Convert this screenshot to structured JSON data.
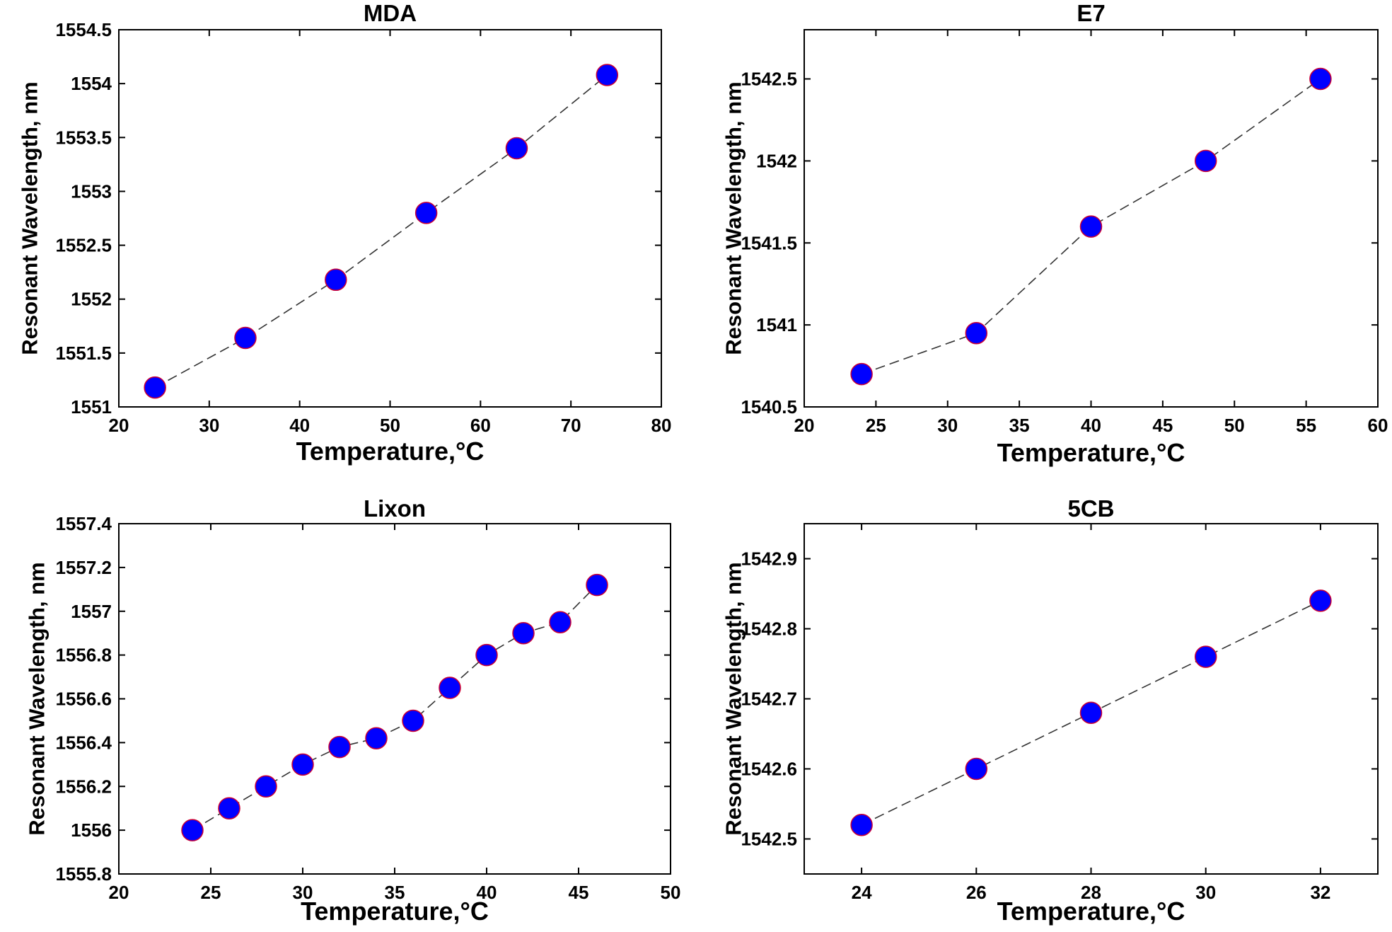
{
  "chart_data": [
    {
      "type": "line",
      "title": "MDA",
      "xlabel": "Temperature,°C",
      "ylabel": "Resonant Wavelength, nm",
      "xlim": [
        20,
        80
      ],
      "ylim": [
        1551,
        1554.5
      ],
      "xticks": [
        20,
        30,
        40,
        50,
        60,
        70,
        80
      ],
      "yticks": [
        1551,
        1551.5,
        1552,
        1552.5,
        1553,
        1553.5,
        1554,
        1554.5
      ],
      "grid": false,
      "series": [
        {
          "name": "MDA",
          "x": [
            24,
            34,
            44,
            54,
            64,
            74
          ],
          "values": [
            1551.18,
            1551.64,
            1552.18,
            1552.8,
            1553.4,
            1554.08
          ]
        }
      ]
    },
    {
      "type": "line",
      "title": "E7",
      "xlabel": "Temperature,°C",
      "ylabel": "Resonant Wavelength, nm",
      "xlim": [
        20,
        60
      ],
      "ylim": [
        1540.5,
        1542.8
      ],
      "xticks": [
        20,
        25,
        30,
        35,
        40,
        45,
        50,
        55,
        60
      ],
      "yticks": [
        1540.5,
        1541,
        1541.5,
        1542,
        1542.5
      ],
      "grid": false,
      "series": [
        {
          "name": "E7",
          "x": [
            24,
            32,
            40,
            48,
            56
          ],
          "values": [
            1540.7,
            1540.95,
            1541.6,
            1542.0,
            1542.5
          ]
        }
      ]
    },
    {
      "type": "line",
      "title": "Lixon",
      "xlabel": "Temperature,°C",
      "ylabel": "Resonant Wavelength, nm",
      "xlim": [
        20,
        50
      ],
      "ylim": [
        1555.8,
        1557.4
      ],
      "xticks": [
        20,
        25,
        30,
        35,
        40,
        45,
        50
      ],
      "yticks": [
        1555.8,
        1556,
        1556.2,
        1556.4,
        1556.6,
        1556.8,
        1557,
        1557.2,
        1557.4
      ],
      "grid": false,
      "series": [
        {
          "name": "Lixon",
          "x": [
            24,
            26,
            28,
            30,
            32,
            34,
            36,
            38,
            40,
            42,
            44,
            46
          ],
          "values": [
            1556.0,
            1556.1,
            1556.2,
            1556.3,
            1556.38,
            1556.42,
            1556.5,
            1556.65,
            1556.8,
            1556.9,
            1556.95,
            1557.12
          ]
        }
      ]
    },
    {
      "type": "line",
      "title": "5CB",
      "xlabel": "Temperature,°C",
      "ylabel": "Resonant Wavelength, nm",
      "xlim": [
        23,
        33
      ],
      "ylim": [
        1542.45,
        1542.95
      ],
      "xticks": [
        24,
        26,
        28,
        30,
        32
      ],
      "yticks": [
        1542.5,
        1542.6,
        1542.7,
        1542.8,
        1542.9
      ],
      "grid": false,
      "series": [
        {
          "name": "5CB",
          "x": [
            24,
            26,
            28,
            30,
            32
          ],
          "values": [
            1542.52,
            1542.6,
            1542.68,
            1542.76,
            1542.84
          ]
        }
      ]
    }
  ],
  "style": {
    "marker_fill": "#0000ff",
    "marker_edge": "#cc0033",
    "line_color": "#333333",
    "axis_color": "#000000",
    "background": "#ffffff"
  }
}
